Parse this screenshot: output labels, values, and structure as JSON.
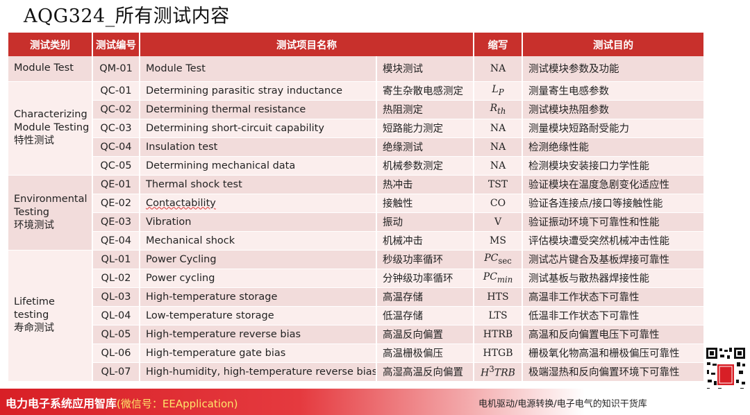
{
  "title": "AQG324_所有测试内容",
  "headers": [
    "测试类别",
    "测试编号",
    "测试项目名称",
    "缩写",
    "测试目的"
  ],
  "categories": {
    "module": "Module Test",
    "characterizing": [
      "Characterizing",
      "Module Testing",
      "特性测试"
    ],
    "environmental": [
      "Environmental",
      "Testing",
      "环境测试"
    ],
    "lifetime": [
      "Lifetime",
      "testing",
      "寿命测试"
    ]
  },
  "rows": [
    {
      "code": "QM-01",
      "en": "Module Test",
      "zh": "模块测试",
      "abbr": "NA",
      "purpose": "测试模块参数及功能"
    },
    {
      "code": "QC-01",
      "en": "Determining parasitic stray inductance",
      "zh": "寄生杂散电感测定",
      "abbr_main": "L",
      "abbr_sub": "P",
      "purpose": "测量寄生电感参数"
    },
    {
      "code": "QC-02",
      "en": "Determining thermal resistance",
      "zh": "热阻测定",
      "abbr_main": "R",
      "abbr_sub": "th",
      "purpose": "测试模块热阻参数"
    },
    {
      "code": "QC-03",
      "en": "Determining short-circuit capability",
      "zh": "短路能力测定",
      "abbr": "NA",
      "purpose": "测量模块短路耐受能力"
    },
    {
      "code": "QC-04",
      "en": "Insulation test",
      "zh": "绝缘测试",
      "abbr": "NA",
      "purpose": "检测绝缘性能"
    },
    {
      "code": "QC-05",
      "en": "Determining mechanical data",
      "zh": "机械参数测定",
      "abbr": "NA",
      "purpose": "检测模块安装接口力学性能"
    },
    {
      "code": "QE-01",
      "en": "Thermal shock test",
      "zh": "热冲击",
      "abbr": "TST",
      "purpose": "验证模块在温度急剧变化适应性"
    },
    {
      "code": "QE-02",
      "en": "Contactability",
      "zh": "接触性",
      "abbr": "CO",
      "purpose": "验证各连接点/接口等接触性能"
    },
    {
      "code": "QE-03",
      "en": "Vibration",
      "zh": "振动",
      "abbr": "V",
      "purpose": "验证振动环境下可靠性和性能"
    },
    {
      "code": "QE-04",
      "en": "Mechanical shock",
      "zh": "机械冲击",
      "abbr": "MS",
      "purpose": "评估模块遭受突然机械冲击性能"
    },
    {
      "code": "QL-01",
      "en": "Power Cycling",
      "zh": "秒级功率循环",
      "abbr_main": "PC",
      "abbr_sub": "sec",
      "purpose": "测试芯片键合及基板焊接可靠性"
    },
    {
      "code": "QL-02",
      "en": "Power cycling",
      "zh": "分钟级功率循环",
      "abbr_main": "PC",
      "abbr_sub": "min",
      "purpose": "测试基板与散热器焊接性能"
    },
    {
      "code": "QL-03",
      "en": "High-temperature storage",
      "zh": "高温存储",
      "abbr": "HTS",
      "purpose": "高温非工作状态下可靠性"
    },
    {
      "code": "QL-04",
      "en": "Low-temperature storage",
      "zh": "低温存储",
      "abbr": "LTS",
      "purpose": "低温非工作状态下可靠性"
    },
    {
      "code": "QL-05",
      "en": "High-temperature reverse bias",
      "zh": "高温反向偏置",
      "abbr": "HTRB",
      "purpose": "高温和反向偏置电压下可靠性"
    },
    {
      "code": "QL-06",
      "en": "High-temperature gate bias",
      "zh": "高温栅极偏压",
      "abbr": "HTGB",
      "purpose": "栅极氧化物高温和栅极偏压可靠性"
    },
    {
      "code": "QL-07",
      "en": "High-humidity, high-temperature reverse bias",
      "zh": "高湿高温反向偏置",
      "abbr_main": "H",
      "abbr_sup": "3",
      "abbr_rest": "TRB",
      "purpose": "极端湿热和反向偏置环境下可靠性"
    }
  ],
  "footer": {
    "brand": "电力电子系统应用智库",
    "wechat": "(微信号：EEApplication)",
    "tagline": "电机驱动/电源转换/电子电气的知识干货库"
  },
  "colors": {
    "header": "#c8302c",
    "row_dark": "#f2dcdb",
    "row_light": "#fbeeed",
    "footer": "#d81f26"
  },
  "qr_icon": "qr-code-icon"
}
